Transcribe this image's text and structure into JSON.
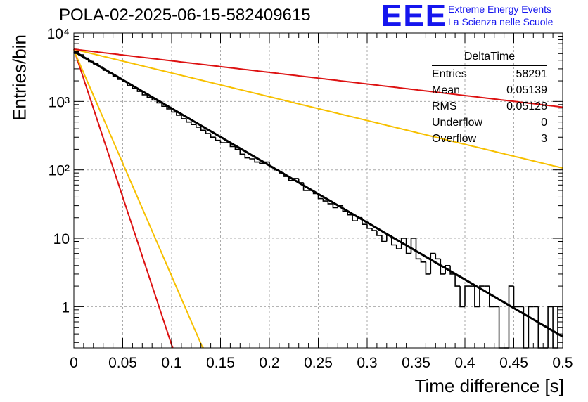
{
  "title": "POLA-02-2025-06-15-582409615",
  "logo": {
    "mark": "EEE",
    "line1": "Extreme Energy Events",
    "line2": "La Scienza nelle Scuole"
  },
  "stats_box": {
    "name": "DeltaTime",
    "rows": [
      {
        "label": "Entries",
        "value": "58291"
      },
      {
        "label": "Mean",
        "value": "0.05139"
      },
      {
        "label": "RMS",
        "value": "0.05128"
      },
      {
        "label": "Underflow",
        "value": "0"
      },
      {
        "label": "Overflow",
        "value": "3"
      }
    ]
  },
  "colors": {
    "histogram": "#000000",
    "fit": "#000000",
    "red_curve": "#dd1111",
    "yellow_curve": "#f7c000",
    "logo": "#1515ee",
    "grid": "#aaaaaa"
  },
  "chart_data": {
    "type": "histogram",
    "title": "POLA-02-2025-06-15-582409615",
    "xlabel": "Time difference [s]",
    "ylabel": "Entries/bin",
    "xlim": [
      0,
      0.5
    ],
    "ylim": [
      0.25,
      10000
    ],
    "y_scale": "log",
    "grid": true,
    "x_ticks": [
      0,
      0.05,
      0.1,
      0.15,
      0.2,
      0.25,
      0.3,
      0.35,
      0.4,
      0.45,
      0.5
    ],
    "x_tick_labels": [
      "0",
      "0.05",
      "0.1",
      "0.15",
      "0.2",
      "0.25",
      "0.3",
      "0.35",
      "0.4",
      "0.45",
      "0.5"
    ],
    "y_ticks": [
      1,
      10,
      100,
      1000,
      10000
    ],
    "y_tick_labels": [
      "1",
      "10",
      "10²",
      "10³",
      "10⁴"
    ],
    "bin_width": 0.005,
    "bin_starts": [
      0,
      0.005,
      0.01,
      0.015,
      0.02,
      0.025,
      0.03,
      0.035,
      0.04,
      0.045,
      0.05,
      0.055,
      0.06,
      0.065,
      0.07,
      0.075,
      0.08,
      0.085,
      0.09,
      0.095,
      0.1,
      0.105,
      0.11,
      0.115,
      0.12,
      0.125,
      0.13,
      0.135,
      0.14,
      0.145,
      0.15,
      0.155,
      0.16,
      0.165,
      0.17,
      0.175,
      0.18,
      0.185,
      0.19,
      0.195,
      0.2,
      0.205,
      0.21,
      0.215,
      0.22,
      0.225,
      0.23,
      0.235,
      0.24,
      0.245,
      0.25,
      0.255,
      0.26,
      0.265,
      0.27,
      0.275,
      0.28,
      0.285,
      0.29,
      0.295,
      0.3,
      0.305,
      0.31,
      0.315,
      0.32,
      0.325,
      0.33,
      0.335,
      0.34,
      0.345,
      0.35,
      0.355,
      0.36,
      0.365,
      0.37,
      0.375,
      0.38,
      0.385,
      0.39,
      0.395,
      0.4,
      0.405,
      0.41,
      0.415,
      0.42,
      0.425,
      0.43,
      0.435,
      0.44,
      0.445,
      0.45,
      0.455,
      0.46,
      0.465,
      0.47,
      0.475,
      0.48,
      0.485,
      0.49,
      0.495
    ],
    "counts": [
      5300,
      4800,
      4300,
      3850,
      3550,
      3200,
      2850,
      2600,
      2350,
      2100,
      1950,
      1700,
      1550,
      1400,
      1250,
      1150,
      1050,
      950,
      850,
      780,
      700,
      630,
      560,
      500,
      460,
      420,
      380,
      340,
      300,
      270,
      250,
      250,
      220,
      200,
      170,
      150,
      145,
      130,
      125,
      130,
      110,
      100,
      90,
      80,
      70,
      75,
      65,
      50,
      50,
      45,
      38,
      35,
      32,
      28,
      30,
      25,
      22,
      18,
      20,
      16,
      14,
      13,
      11,
      9,
      11,
      8,
      7,
      10,
      6,
      10,
      5,
      4.5,
      3,
      6,
      5,
      3,
      4,
      3,
      2,
      1,
      2,
      2,
      1,
      2,
      2,
      1,
      1,
      0,
      0,
      2,
      1,
      1,
      0,
      1,
      1,
      0,
      0,
      1,
      0,
      1
    ],
    "fit": {
      "name": "exponential fit",
      "amplitude": 5400,
      "slope": -19.2,
      "color": "#000000"
    },
    "curves": [
      {
        "name": "red steep",
        "amplitude": 5800,
        "slope": -99.5,
        "color": "#dd1111"
      },
      {
        "name": "yellow steep",
        "amplitude": 5600,
        "slope": -76.0,
        "color": "#f7c000"
      },
      {
        "name": "yellow shallow",
        "amplitude": 5800,
        "slope": -8.0,
        "color": "#f7c000"
      },
      {
        "name": "red shallow",
        "amplitude": 5800,
        "slope": -3.9,
        "color": "#dd1111"
      }
    ]
  }
}
